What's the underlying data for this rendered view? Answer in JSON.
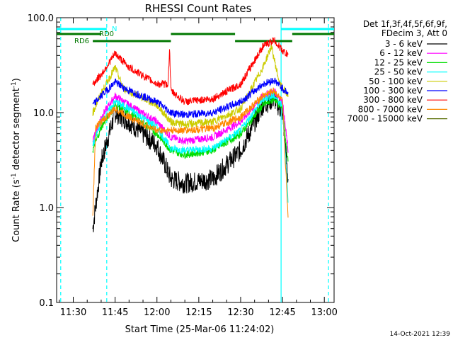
{
  "chart_data": {
    "type": "line",
    "title": "RHESSI Count Rates",
    "xlabel": "Start Time (25-Mar-06 11:24:02)",
    "ylabel_main": "Count Rate (s",
    "ylabel_sup1": "-1",
    "ylabel_mid": " detector segment",
    "ylabel_sup2": "-1",
    "ylabel_end": ")",
    "y_scale": "log",
    "ylim": [
      0.1,
      100
    ],
    "xlim": [
      "11:24:02",
      "13:03:30"
    ],
    "x_ticks": [
      "11:30",
      "11:45",
      "12:00",
      "12:15",
      "12:30",
      "12:45",
      "13:00"
    ],
    "y_ticks": [
      "0.1",
      "1.0",
      "10.0",
      "100.0"
    ],
    "legend_header": [
      "Det 1f,3f,4f,5f,6f,9f,",
      "FDecim 3, Att 0"
    ],
    "legend_position": "right",
    "series": [
      {
        "name": "3 - 6 keV",
        "color": "#000000",
        "points": [
          [
            "11:37:00",
            0.6
          ],
          [
            "11:40:00",
            3.0
          ],
          [
            "11:45:00",
            10.0
          ],
          [
            "11:50:00",
            8.0
          ],
          [
            "12:00:00",
            4.5
          ],
          [
            "12:05:00",
            2.0
          ],
          [
            "12:10:00",
            1.8
          ],
          [
            "12:20:00",
            2.0
          ],
          [
            "12:30:00",
            4.0
          ],
          [
            "12:38:00",
            12.0
          ],
          [
            "12:42:00",
            14.0
          ],
          [
            "12:45:00",
            10.0
          ],
          [
            "12:47:00",
            2.0
          ]
        ]
      },
      {
        "name": "6 - 12 keV",
        "color": "#ff00ff",
        "points": [
          [
            "11:37:00",
            5.0
          ],
          [
            "11:40:00",
            9.0
          ],
          [
            "11:45:00",
            15.0
          ],
          [
            "11:50:00",
            12.0
          ],
          [
            "12:00:00",
            8.0
          ],
          [
            "12:05:00",
            5.5
          ],
          [
            "12:10:00",
            5.0
          ],
          [
            "12:20:00",
            5.5
          ],
          [
            "12:30:00",
            8.0
          ],
          [
            "12:38:00",
            15.0
          ],
          [
            "12:42:00",
            17.0
          ],
          [
            "12:45:00",
            13.0
          ],
          [
            "12:47:00",
            4.0
          ]
        ]
      },
      {
        "name": "12 - 25 keV",
        "color": "#00dd00",
        "points": [
          [
            "11:37:00",
            4.0
          ],
          [
            "11:40:00",
            7.0
          ],
          [
            "11:45:00",
            12.0
          ],
          [
            "11:50:00",
            10.0
          ],
          [
            "12:00:00",
            6.0
          ],
          [
            "12:05:00",
            4.0
          ],
          [
            "12:10:00",
            3.6
          ],
          [
            "12:20:00",
            4.0
          ],
          [
            "12:30:00",
            6.0
          ],
          [
            "12:38:00",
            12.0
          ],
          [
            "12:42:00",
            14.0
          ],
          [
            "12:45:00",
            11.0
          ],
          [
            "12:47:00",
            3.0
          ]
        ]
      },
      {
        "name": "25 - 50 keV",
        "color": "#00ffff",
        "points": [
          [
            "11:37:00",
            4.5
          ],
          [
            "11:40:00",
            8.0
          ],
          [
            "11:45:00",
            13.0
          ],
          [
            "11:50:00",
            11.0
          ],
          [
            "12:00:00",
            7.0
          ],
          [
            "12:05:00",
            4.2
          ],
          [
            "12:10:00",
            4.0
          ],
          [
            "12:20:00",
            4.2
          ],
          [
            "12:30:00",
            6.5
          ],
          [
            "12:38:00",
            14.0
          ],
          [
            "12:42:00",
            15.0
          ],
          [
            "12:45:00",
            12.0
          ],
          [
            "12:47:00",
            1.2
          ]
        ]
      },
      {
        "name": "50 - 100 keV",
        "color": "#cccc00",
        "points": [
          [
            "11:37:00",
            10.0
          ],
          [
            "11:40:00",
            16.0
          ],
          [
            "11:45:00",
            30.0
          ],
          [
            "11:48:00",
            18.0
          ],
          [
            "12:00:00",
            12.0
          ],
          [
            "12:05:00",
            8.0
          ],
          [
            "12:10:00",
            7.5
          ],
          [
            "12:20:00",
            8.0
          ],
          [
            "12:30:00",
            11.0
          ],
          [
            "12:38:00",
            30.0
          ],
          [
            "12:41:00",
            50.0
          ],
          [
            "12:44:00",
            20.0
          ],
          [
            "12:47:00",
            15.0
          ]
        ]
      },
      {
        "name": "100 - 300 keV",
        "color": "#0000ff",
        "points": [
          [
            "11:37:00",
            12.0
          ],
          [
            "11:40:00",
            15.0
          ],
          [
            "11:45:00",
            21.0
          ],
          [
            "11:50:00",
            17.0
          ],
          [
            "12:00:00",
            13.0
          ],
          [
            "12:05:00",
            10.0
          ],
          [
            "12:10:00",
            9.5
          ],
          [
            "12:20:00",
            10.0
          ],
          [
            "12:30:00",
            13.0
          ],
          [
            "12:38:00",
            20.0
          ],
          [
            "12:42:00",
            22.0
          ],
          [
            "12:45:00",
            18.0
          ],
          [
            "12:47:00",
            16.0
          ]
        ]
      },
      {
        "name": "300 - 800 keV",
        "color": "#ff0000",
        "points": [
          [
            "11:37:00",
            20.0
          ],
          [
            "11:40:00",
            25.0
          ],
          [
            "11:45:00",
            42.0
          ],
          [
            "11:50:00",
            30.0
          ],
          [
            "12:00:00",
            20.0
          ],
          [
            "12:04:00",
            20.0
          ],
          [
            "12:04:30",
            48.0
          ],
          [
            "12:05:00",
            17.0
          ],
          [
            "12:10:00",
            13.0
          ],
          [
            "12:20:00",
            14.0
          ],
          [
            "12:30:00",
            20.0
          ],
          [
            "12:38:00",
            50.0
          ],
          [
            "12:42:00",
            58.0
          ],
          [
            "12:45:00",
            45.0
          ],
          [
            "12:47:00",
            40.0
          ]
        ]
      },
      {
        "name": "800 - 7000 keV",
        "color": "#ff8800",
        "points": [
          [
            "11:37:00",
            0.8
          ],
          [
            "11:38:00",
            7.0
          ],
          [
            "11:45:00",
            11.0
          ],
          [
            "11:50:00",
            9.0
          ],
          [
            "12:00:00",
            6.5
          ],
          [
            "12:05:00",
            6.5
          ],
          [
            "12:10:00",
            6.5
          ],
          [
            "12:20:00",
            6.8
          ],
          [
            "12:30:00",
            9.0
          ],
          [
            "12:38:00",
            15.0
          ],
          [
            "12:42:00",
            17.0
          ],
          [
            "12:45:00",
            13.0
          ],
          [
            "12:47:00",
            0.8
          ]
        ]
      },
      {
        "name": "7000 - 15000 keV",
        "color": "#556b00",
        "points": []
      }
    ],
    "state_bars": [
      {
        "label": "N",
        "color": "#00ffff",
        "level": 1,
        "segments": [
          [
            "11:24:02",
            "11:42:00"
          ],
          [
            "12:44:30",
            "13:03:30"
          ]
        ]
      },
      {
        "label": "RD0",
        "color": "#007700",
        "level": 2,
        "segments": [
          [
            "11:24:02",
            "11:40:00"
          ],
          [
            "12:48:30",
            "13:03:30"
          ]
        ]
      },
      {
        "label": "RD6",
        "color": "#007700",
        "level": 3,
        "segments": [
          [
            "11:37:00",
            "12:05:00"
          ],
          [
            "12:28:00",
            "12:48:30"
          ]
        ]
      },
      {
        "label": "",
        "color": "#007700",
        "level": 2,
        "segments": [
          [
            "12:05:00",
            "12:28:00"
          ]
        ]
      }
    ],
    "vertical_lines": [
      {
        "time": "11:25:30",
        "color": "#00ffff",
        "style": "dashed"
      },
      {
        "time": "11:42:00",
        "color": "#00ffff",
        "style": "dashed"
      },
      {
        "time": "12:44:30",
        "color": "#00ffff",
        "style": "solid"
      },
      {
        "time": "13:01:30",
        "color": "#00ffff",
        "style": "dashed"
      }
    ]
  },
  "footer_timestamp": "14-Oct-2021 12:39"
}
